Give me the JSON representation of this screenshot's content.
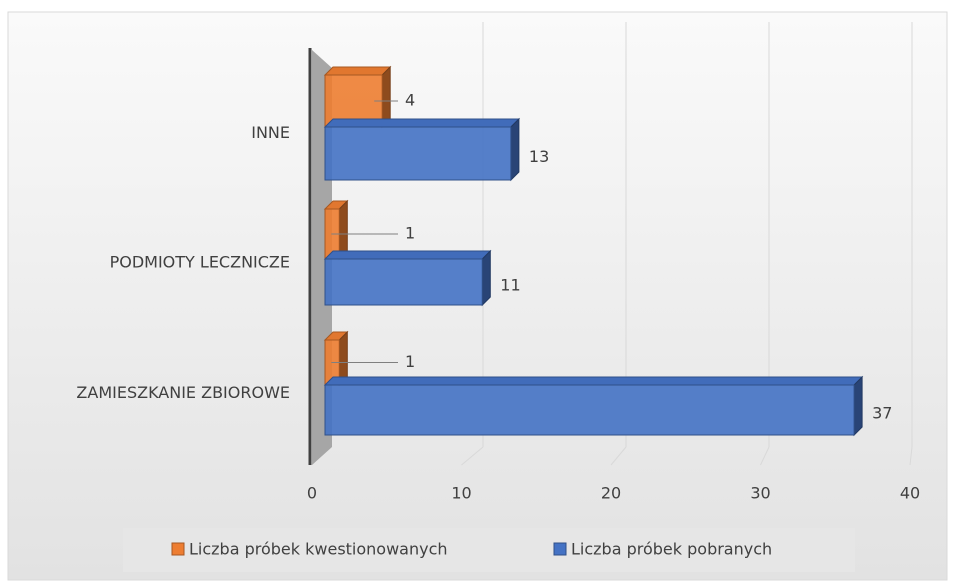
{
  "chart_data": {
    "type": "bar3d_horizontal",
    "categories": [
      "INNE",
      "PODMIOTY LECZNICZE",
      "ZAMIESZKANIE ZBIOROWE"
    ],
    "series": [
      {
        "name": "Liczba próbek kwestionowanych",
        "color": "#ed7d31",
        "values": [
          4,
          1,
          1
        ]
      },
      {
        "name": "Liczba próbek pobranych",
        "color": "#4472c4",
        "values": [
          13,
          11,
          37
        ]
      }
    ],
    "xlim": [
      0,
      40
    ],
    "xticks": [
      0,
      10,
      20,
      30,
      40
    ],
    "grid": true,
    "legend": "bottom"
  }
}
